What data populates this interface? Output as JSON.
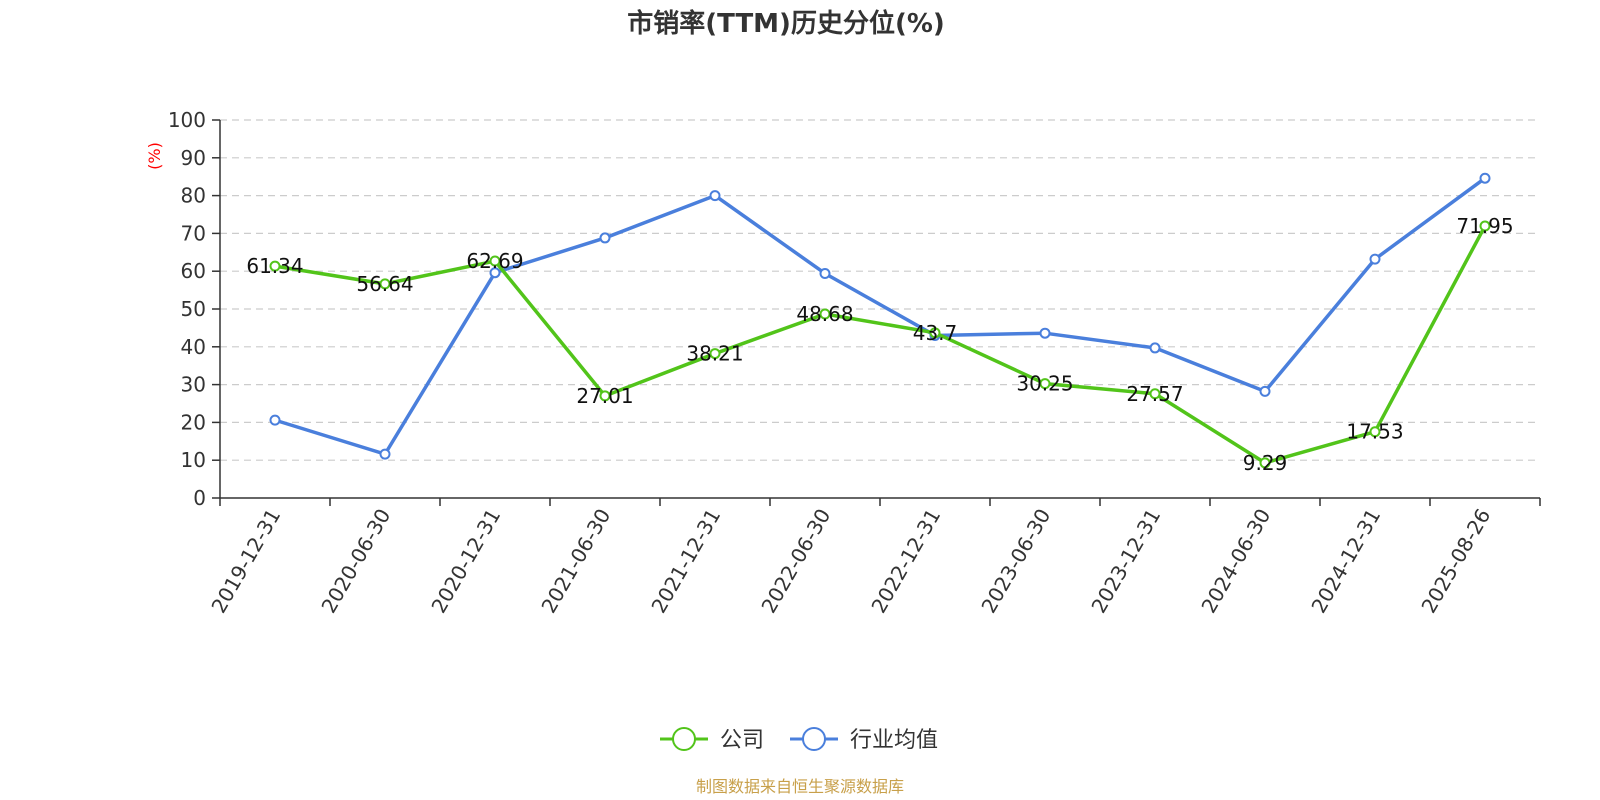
{
  "chart_data": {
    "type": "line",
    "title": "市销率(TTM)历史分位(%)",
    "ylabel": "(%)",
    "xlabel": "",
    "categories": [
      "2019-12-31",
      "2020-06-30",
      "2020-12-31",
      "2021-06-30",
      "2021-12-31",
      "2022-06-30",
      "2022-12-31",
      "2023-06-30",
      "2023-12-31",
      "2024-06-30",
      "2024-12-31",
      "2025-08-26"
    ],
    "ylim": [
      0,
      100
    ],
    "yticks": [
      0,
      10,
      20,
      30,
      40,
      50,
      60,
      70,
      80,
      90,
      100
    ],
    "grid": true,
    "legend_position": "bottom-center",
    "series": [
      {
        "name": "公司",
        "color": "#52c41a",
        "values": [
          61.34,
          56.64,
          62.69,
          27.01,
          38.21,
          48.68,
          43.7,
          30.25,
          27.57,
          9.29,
          17.53,
          71.95
        ],
        "labels": [
          "61.34",
          "56.64",
          "62.69",
          "27.01",
          "38.21",
          "48.68",
          "43.7",
          "30.25",
          "27.57",
          "9.29",
          "17.53",
          "71.95"
        ]
      },
      {
        "name": "行业均值",
        "color": "#4a7fdc",
        "values": [
          20.6,
          11.6,
          59.6,
          68.8,
          80.0,
          59.4,
          43.0,
          43.6,
          39.7,
          28.2,
          63.2,
          84.6
        ]
      }
    ]
  },
  "source": "制图数据来自恒生聚源数据库",
  "colors": {
    "source": "#c8a04a",
    "ylabel": "#ff0000",
    "grid": "#cccccc",
    "axis": "#333333"
  }
}
